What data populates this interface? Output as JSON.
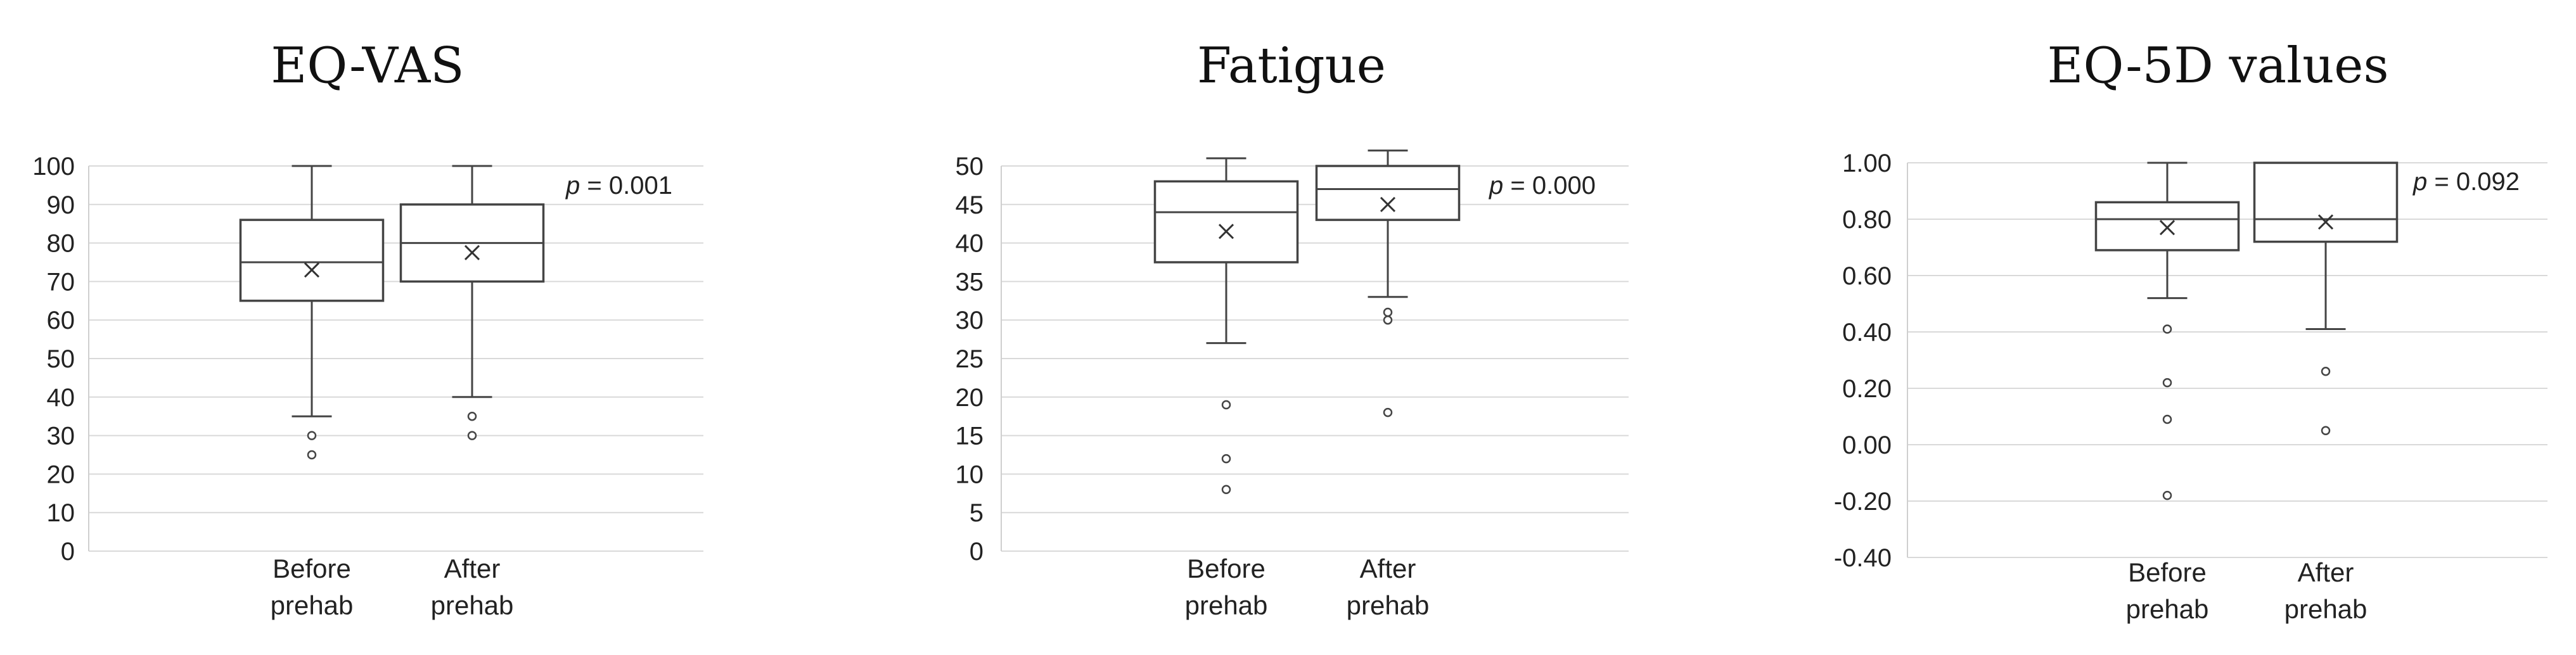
{
  "chart_data": [
    {
      "type": "box",
      "title": "EQ-VAS",
      "categories": [
        [
          "Before",
          "prehab"
        ],
        [
          "After",
          "prehab"
        ]
      ],
      "ylim": [
        0,
        100
      ],
      "yticks": [
        "0",
        "10",
        "20",
        "30",
        "40",
        "50",
        "60",
        "70",
        "80",
        "90",
        "100"
      ],
      "ytick_values": [
        0,
        10,
        20,
        30,
        40,
        50,
        60,
        70,
        80,
        90,
        100
      ],
      "grid": true,
      "annotation": {
        "p_symbol": "p",
        "p_value": " = 0.001"
      },
      "boxes": [
        {
          "min": 35,
          "q1": 65,
          "median": 75,
          "q3": 86,
          "max": 100,
          "mean": 73,
          "outliers": [
            30,
            25
          ]
        },
        {
          "min": 40,
          "q1": 70,
          "median": 80,
          "q3": 90,
          "max": 100,
          "mean": 77.5,
          "outliers": [
            35,
            30
          ]
        }
      ]
    },
    {
      "type": "box",
      "title": "Fatigue",
      "categories": [
        [
          "Before",
          "prehab"
        ],
        [
          "After",
          "prehab"
        ]
      ],
      "ylim": [
        0,
        50
      ],
      "yticks": [
        "0",
        "5",
        "10",
        "15",
        "20",
        "25",
        "30",
        "35",
        "40",
        "45",
        "50"
      ],
      "ytick_values": [
        0,
        5,
        10,
        15,
        20,
        25,
        30,
        35,
        40,
        45,
        50
      ],
      "grid": true,
      "annotation": {
        "p_symbol": "p",
        "p_value": " = 0.000"
      },
      "boxes": [
        {
          "min": 27,
          "q1": 37.5,
          "median": 44,
          "q3": 48,
          "max": 51,
          "mean": 41.5,
          "outliers": [
            19,
            12,
            8
          ]
        },
        {
          "min": 33,
          "q1": 43,
          "median": 47,
          "q3": 50,
          "max": 52,
          "mean": 45,
          "outliers": [
            31,
            30,
            18
          ]
        }
      ]
    },
    {
      "type": "box",
      "title": "EQ-5D values",
      "categories": [
        [
          "Before",
          "prehab"
        ],
        [
          "After",
          "prehab"
        ]
      ],
      "ylim": [
        -0.4,
        1.0
      ],
      "yticks": [
        "-0.40",
        "-0.20",
        "0.00",
        "0.20",
        "0.40",
        "0.60",
        "0.80",
        "1.00"
      ],
      "ytick_values": [
        -0.4,
        -0.2,
        0,
        0.2,
        0.4,
        0.6,
        0.8,
        1.0
      ],
      "grid": true,
      "annotation": {
        "p_symbol": "p",
        "p_value": " = 0.092"
      },
      "boxes": [
        {
          "min": 0.52,
          "q1": 0.69,
          "median": 0.8,
          "q3": 0.86,
          "max": 1.0,
          "mean": 0.77,
          "outliers": [
            0.41,
            0.22,
            0.09,
            -0.18
          ]
        },
        {
          "min": 0.41,
          "q1": 0.72,
          "median": 0.8,
          "q3": 1.0,
          "max": 1.0,
          "mean": 0.79,
          "outliers": [
            0.26,
            0.05
          ]
        }
      ]
    }
  ]
}
